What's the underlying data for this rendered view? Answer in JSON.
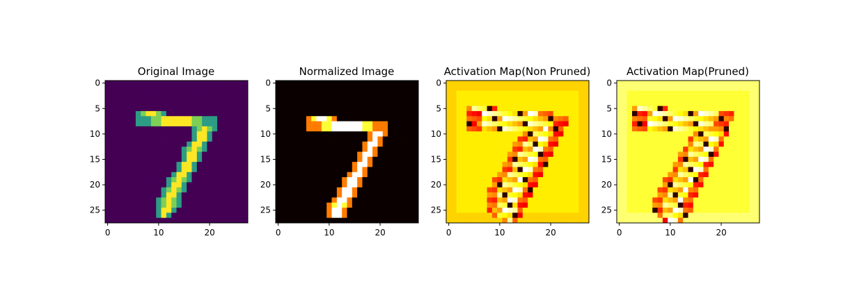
{
  "figure": {
    "panels": [
      {
        "title": "Original Image",
        "colormap": "viridis",
        "background_level": 0,
        "xticks": [
          0,
          10,
          20
        ],
        "yticks": [
          0,
          5,
          10,
          15,
          20,
          25
        ]
      },
      {
        "title": "Normalized Image",
        "colormap": "hot",
        "background_level": 0,
        "xticks": [
          0,
          10,
          20
        ],
        "yticks": [
          0,
          5,
          10,
          15,
          20,
          25
        ]
      },
      {
        "title": "Activation Map(Non Pruned)",
        "colormap": "hot",
        "background_level": 0.72,
        "xticks": [
          0,
          10,
          20
        ],
        "yticks": [
          0,
          5,
          10,
          15,
          20,
          25
        ]
      },
      {
        "title": "Activation Map(Pruned)",
        "colormap": "hot",
        "background_level": 0.8,
        "xticks": [
          0,
          10,
          20
        ],
        "yticks": [
          0,
          5,
          10,
          15,
          20,
          25
        ]
      }
    ]
  },
  "chart_data": [
    {
      "type": "heatmap",
      "title": "Original Image",
      "grid_size": [
        28,
        28
      ],
      "xlim": [
        -0.5,
        27.5
      ],
      "ylim": [
        27.5,
        -0.5
      ],
      "colormap": "viridis",
      "stroke_rows": [
        {
          "row": 6,
          "start": 6,
          "end": 11
        },
        {
          "row": 7,
          "start": 6,
          "end": 21
        },
        {
          "row": 8,
          "start": 6,
          "end": 21
        },
        {
          "row": 9,
          "start": 17,
          "end": 21
        },
        {
          "row": 10,
          "start": 17,
          "end": 20
        },
        {
          "row": 11,
          "start": 17,
          "end": 20
        },
        {
          "row": 12,
          "start": 16,
          "end": 19
        },
        {
          "row": 13,
          "start": 15,
          "end": 19
        },
        {
          "row": 14,
          "start": 15,
          "end": 18
        },
        {
          "row": 15,
          "start": 15,
          "end": 18
        },
        {
          "row": 16,
          "start": 14,
          "end": 17
        },
        {
          "row": 17,
          "start": 14,
          "end": 17
        },
        {
          "row": 18,
          "start": 13,
          "end": 16
        },
        {
          "row": 19,
          "start": 12,
          "end": 16
        },
        {
          "row": 20,
          "start": 12,
          "end": 15
        },
        {
          "row": 21,
          "start": 11,
          "end": 15
        },
        {
          "row": 22,
          "start": 11,
          "end": 14
        },
        {
          "row": 23,
          "start": 10,
          "end": 14
        },
        {
          "row": 24,
          "start": 10,
          "end": 14
        },
        {
          "row": 25,
          "start": 10,
          "end": 13
        },
        {
          "row": 26,
          "start": 10,
          "end": 12
        }
      ]
    },
    {
      "type": "heatmap",
      "title": "Normalized Image",
      "grid_size": [
        28,
        28
      ],
      "xlim": [
        -0.5,
        27.5
      ],
      "ylim": [
        27.5,
        -0.5
      ],
      "colormap": "hot",
      "stroke_rows": [
        {
          "row": 7,
          "start": 6,
          "end": 11
        },
        {
          "row": 8,
          "start": 6,
          "end": 21
        },
        {
          "row": 9,
          "start": 6,
          "end": 21
        },
        {
          "row": 10,
          "start": 18,
          "end": 21
        },
        {
          "row": 11,
          "start": 18,
          "end": 20
        },
        {
          "row": 12,
          "start": 17,
          "end": 20
        },
        {
          "row": 13,
          "start": 17,
          "end": 19
        },
        {
          "row": 14,
          "start": 16,
          "end": 19
        },
        {
          "row": 15,
          "start": 16,
          "end": 18
        },
        {
          "row": 16,
          "start": 15,
          "end": 18
        },
        {
          "row": 17,
          "start": 15,
          "end": 17
        },
        {
          "row": 18,
          "start": 14,
          "end": 17
        },
        {
          "row": 19,
          "start": 13,
          "end": 16
        },
        {
          "row": 20,
          "start": 13,
          "end": 16
        },
        {
          "row": 21,
          "start": 12,
          "end": 15
        },
        {
          "row": 22,
          "start": 12,
          "end": 15
        },
        {
          "row": 23,
          "start": 11,
          "end": 14
        },
        {
          "row": 24,
          "start": 10,
          "end": 14
        },
        {
          "row": 25,
          "start": 10,
          "end": 13
        },
        {
          "row": 26,
          "start": 10,
          "end": 13
        }
      ]
    },
    {
      "type": "heatmap",
      "title": "Activation Map(Non Pruned)",
      "grid_size": [
        28,
        28
      ],
      "xlim": [
        -0.5,
        27.5
      ],
      "ylim": [
        27.5,
        -0.5
      ],
      "colormap": "hot",
      "stroke_rows": [
        {
          "row": 5,
          "start": 4,
          "end": 9
        },
        {
          "row": 6,
          "start": 4,
          "end": 20
        },
        {
          "row": 7,
          "start": 4,
          "end": 23
        },
        {
          "row": 8,
          "start": 4,
          "end": 23
        },
        {
          "row": 9,
          "start": 4,
          "end": 22
        },
        {
          "row": 10,
          "start": 15,
          "end": 22
        },
        {
          "row": 11,
          "start": 14,
          "end": 21
        },
        {
          "row": 12,
          "start": 13,
          "end": 21
        },
        {
          "row": 13,
          "start": 13,
          "end": 20
        },
        {
          "row": 14,
          "start": 12,
          "end": 20
        },
        {
          "row": 15,
          "start": 12,
          "end": 19
        },
        {
          "row": 16,
          "start": 11,
          "end": 19
        },
        {
          "row": 17,
          "start": 11,
          "end": 18
        },
        {
          "row": 18,
          "start": 10,
          "end": 18
        },
        {
          "row": 19,
          "start": 9,
          "end": 17
        },
        {
          "row": 20,
          "start": 9,
          "end": 17
        },
        {
          "row": 21,
          "start": 8,
          "end": 16
        },
        {
          "row": 22,
          "start": 8,
          "end": 16
        },
        {
          "row": 23,
          "start": 8,
          "end": 15
        },
        {
          "row": 24,
          "start": 8,
          "end": 15
        },
        {
          "row": 25,
          "start": 8,
          "end": 14
        },
        {
          "row": 26,
          "start": 9,
          "end": 14
        },
        {
          "row": 27,
          "start": 11,
          "end": 13
        }
      ]
    },
    {
      "type": "heatmap",
      "title": "Activation Map(Pruned)",
      "grid_size": [
        28,
        28
      ],
      "xlim": [
        -0.5,
        27.5
      ],
      "ylim": [
        27.5,
        -0.5
      ],
      "colormap": "hot",
      "stroke_rows": [
        {
          "row": 5,
          "start": 3,
          "end": 9
        },
        {
          "row": 6,
          "start": 3,
          "end": 22
        },
        {
          "row": 7,
          "start": 3,
          "end": 22
        },
        {
          "row": 8,
          "start": 3,
          "end": 21
        },
        {
          "row": 9,
          "start": 3,
          "end": 21
        },
        {
          "row": 10,
          "start": 15,
          "end": 21
        },
        {
          "row": 11,
          "start": 14,
          "end": 20
        },
        {
          "row": 12,
          "start": 14,
          "end": 20
        },
        {
          "row": 13,
          "start": 13,
          "end": 19
        },
        {
          "row": 14,
          "start": 12,
          "end": 19
        },
        {
          "row": 15,
          "start": 12,
          "end": 18
        },
        {
          "row": 16,
          "start": 11,
          "end": 18
        },
        {
          "row": 17,
          "start": 11,
          "end": 17
        },
        {
          "row": 18,
          "start": 10,
          "end": 17
        },
        {
          "row": 19,
          "start": 9,
          "end": 16
        },
        {
          "row": 20,
          "start": 9,
          "end": 16
        },
        {
          "row": 21,
          "start": 8,
          "end": 15
        },
        {
          "row": 22,
          "start": 8,
          "end": 15
        },
        {
          "row": 23,
          "start": 7,
          "end": 14
        },
        {
          "row": 24,
          "start": 7,
          "end": 14
        },
        {
          "row": 25,
          "start": 7,
          "end": 14
        },
        {
          "row": 26,
          "start": 8,
          "end": 13
        },
        {
          "row": 27,
          "start": 9,
          "end": 12
        }
      ]
    }
  ]
}
